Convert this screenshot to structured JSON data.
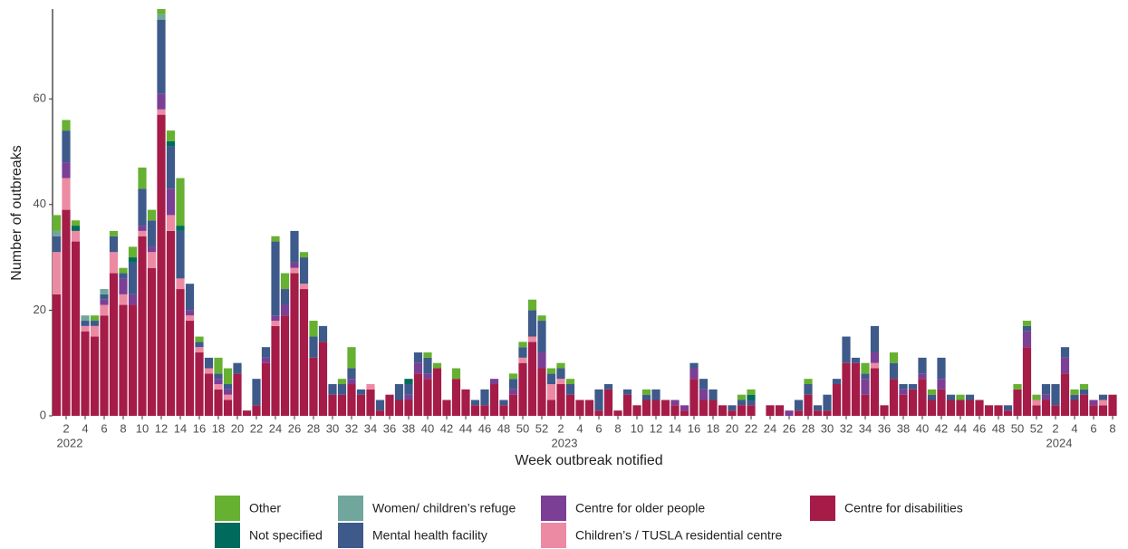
{
  "chart_data": {
    "type": "stacked_bar",
    "xlabel": "Week outbreak notified",
    "ylabel": "Number of outbreaks",
    "ylim": [
      0,
      77
    ],
    "yticks": [
      0,
      20,
      40,
      60
    ],
    "x_group_labels": [
      "2022",
      "2023",
      "2024"
    ],
    "categories": [
      null,
      "2",
      null,
      "4",
      null,
      "6",
      null,
      "8",
      null,
      "10",
      null,
      "12",
      null,
      "14",
      null,
      "16",
      null,
      "18",
      null,
      "20",
      null,
      "22",
      null,
      "24",
      null,
      "26",
      null,
      "28",
      null,
      "30",
      null,
      "32",
      null,
      "34",
      null,
      "36",
      null,
      "38",
      null,
      "40",
      null,
      "42",
      null,
      "44",
      null,
      "46",
      null,
      "48",
      null,
      "50",
      null,
      "52",
      null,
      "2",
      null,
      "4",
      null,
      "6",
      null,
      "8",
      null,
      "10",
      null,
      "12",
      null,
      "14",
      null,
      "16",
      null,
      "18",
      null,
      "20",
      null,
      "22",
      null,
      "24",
      null,
      "26",
      null,
      "28",
      null,
      "30",
      null,
      "32",
      null,
      "34",
      null,
      "36",
      null,
      "38",
      null,
      "40",
      null,
      "42",
      null,
      "44",
      null,
      "46",
      null,
      "48",
      null,
      "50",
      null,
      "52",
      null,
      "2",
      null,
      "4",
      null,
      "6",
      null,
      "8"
    ],
    "series": [
      {
        "name": "Centre for disabilities",
        "color": "#a51c48",
        "values": [
          23,
          39,
          33,
          16,
          15,
          19,
          27,
          21,
          21,
          34,
          28,
          57,
          35,
          24,
          18,
          12,
          8,
          5,
          3,
          8,
          1,
          2,
          10,
          17,
          19,
          27,
          24,
          11,
          14,
          4,
          4,
          6,
          4,
          5,
          1,
          4,
          3,
          3,
          8,
          7,
          9,
          3,
          7,
          5,
          2,
          2,
          6,
          2,
          4,
          10,
          14,
          9,
          3,
          6,
          4,
          3,
          3,
          1,
          5,
          1,
          4,
          2,
          3,
          3,
          3,
          2,
          1,
          7,
          3,
          3,
          2,
          1,
          2,
          2,
          0,
          2,
          2,
          0,
          1,
          4,
          1,
          1,
          6,
          10,
          10,
          4,
          9,
          2,
          7,
          4,
          5,
          7,
          3,
          5,
          3,
          3,
          3,
          3,
          2,
          2,
          1,
          5,
          13,
          2,
          3,
          2,
          8,
          3,
          4,
          2,
          2,
          4
        ]
      },
      {
        "name": "Children’s / TUSLA residential centre",
        "color": "#ec8aa3",
        "values": [
          8,
          6,
          2,
          1,
          2,
          2,
          4,
          2,
          0,
          1,
          3,
          1,
          3,
          2,
          1,
          1,
          1,
          1,
          1,
          0,
          0,
          0,
          0,
          1,
          0,
          1,
          1,
          0,
          0,
          0,
          0,
          0,
          0,
          1,
          0,
          0,
          0,
          0,
          0,
          0,
          0,
          0,
          0,
          0,
          0,
          0,
          0,
          0,
          0,
          1,
          1,
          0,
          3,
          1,
          0,
          0,
          0,
          0,
          0,
          0,
          0,
          0,
          0,
          0,
          0,
          0,
          0,
          0,
          0,
          0,
          0,
          0,
          0,
          0,
          0,
          0,
          0,
          0,
          0,
          0,
          0,
          0,
          0,
          0,
          0,
          0,
          1,
          0,
          0,
          0,
          0,
          0,
          0,
          0,
          0,
          0,
          0,
          0,
          0,
          0,
          0,
          0,
          0,
          1,
          0,
          0,
          0,
          0,
          0,
          0,
          1,
          0
        ]
      },
      {
        "name": "Centre for older people",
        "color": "#7b3f96",
        "values": [
          0,
          3,
          0,
          0,
          0,
          1,
          0,
          3,
          2,
          1,
          1,
          3,
          5,
          0,
          1,
          0,
          0,
          1,
          1,
          0,
          0,
          0,
          1,
          1,
          2,
          1,
          0,
          0,
          0,
          0,
          0,
          1,
          0,
          0,
          0,
          0,
          0,
          1,
          2,
          1,
          0,
          0,
          0,
          0,
          0,
          0,
          1,
          0,
          1,
          0,
          0,
          3,
          0,
          0,
          0,
          0,
          0,
          0,
          0,
          0,
          0,
          0,
          0,
          0,
          0,
          1,
          1,
          2,
          2,
          0,
          0,
          0,
          0,
          0,
          0,
          0,
          0,
          1,
          0,
          0,
          0,
          0,
          0,
          0,
          0,
          3,
          2,
          0,
          0,
          1,
          0,
          1,
          0,
          2,
          0,
          0,
          0,
          0,
          0,
          0,
          0,
          0,
          3,
          0,
          1,
          0,
          3,
          0,
          0,
          1,
          0,
          0
        ]
      },
      {
        "name": "Mental health facility",
        "color": "#3e5a8a",
        "values": [
          3,
          6,
          0,
          1,
          1,
          1,
          3,
          1,
          6,
          7,
          5,
          14,
          8,
          9,
          5,
          1,
          2,
          1,
          1,
          2,
          0,
          5,
          2,
          14,
          3,
          6,
          5,
          4,
          3,
          2,
          2,
          2,
          1,
          0,
          2,
          0,
          3,
          2,
          2,
          3,
          0,
          0,
          0,
          0,
          1,
          3,
          0,
          1,
          2,
          2,
          5,
          6,
          2,
          2,
          2,
          0,
          0,
          4,
          1,
          0,
          1,
          0,
          1,
          2,
          0,
          0,
          0,
          1,
          2,
          2,
          0,
          1,
          1,
          1,
          0,
          0,
          0,
          0,
          2,
          2,
          1,
          3,
          1,
          5,
          1,
          1,
          5,
          0,
          3,
          1,
          1,
          3,
          1,
          4,
          1,
          0,
          1,
          0,
          0,
          0,
          1,
          0,
          1,
          0,
          2,
          4,
          2,
          1,
          1,
          0,
          1,
          0
        ]
      },
      {
        "name": "Women/ children’s refuge",
        "color": "#70a69b",
        "values": [
          1,
          0,
          0,
          1,
          0,
          1,
          0,
          0,
          0,
          0,
          0,
          1,
          0,
          0,
          0,
          0,
          0,
          0,
          0,
          0,
          0,
          0,
          0,
          0,
          0,
          0,
          0,
          0,
          0,
          0,
          0,
          0,
          0,
          0,
          0,
          0,
          0,
          0,
          0,
          0,
          0,
          0,
          0,
          0,
          0,
          0,
          0,
          0,
          0,
          0,
          0,
          0,
          0,
          0,
          0,
          0,
          0,
          0,
          0,
          0,
          0,
          0,
          0,
          0,
          0,
          0,
          0,
          0,
          0,
          0,
          0,
          0,
          0,
          0,
          0,
          0,
          0,
          0,
          0,
          0,
          0,
          0,
          0,
          0,
          0,
          0,
          0,
          0,
          0,
          0,
          0,
          0,
          0,
          0,
          0,
          0,
          0,
          0,
          0,
          0,
          0,
          0,
          0,
          0,
          0,
          0,
          0,
          0,
          0,
          0,
          0,
          0
        ]
      },
      {
        "name": "Not specified",
        "color": "#006b5c",
        "values": [
          0,
          0,
          1,
          0,
          0,
          0,
          0,
          0,
          1,
          0,
          0,
          0,
          1,
          1,
          0,
          0,
          0,
          0,
          0,
          0,
          0,
          0,
          0,
          0,
          0,
          0,
          0,
          0,
          0,
          0,
          0,
          0,
          0,
          0,
          0,
          0,
          0,
          1,
          0,
          0,
          0,
          0,
          0,
          0,
          0,
          0,
          0,
          0,
          0,
          0,
          0,
          0,
          0,
          0,
          0,
          0,
          0,
          0,
          0,
          0,
          0,
          0,
          0,
          0,
          0,
          0,
          0,
          0,
          0,
          0,
          0,
          0,
          0,
          1,
          0,
          0,
          0,
          0,
          0,
          0,
          0,
          0,
          0,
          0,
          0,
          0,
          0,
          0,
          0,
          0,
          0,
          0,
          0,
          0,
          0,
          0,
          0,
          0,
          0,
          0,
          0,
          0,
          0,
          0,
          0,
          0,
          0,
          0,
          0,
          0,
          0,
          0
        ]
      },
      {
        "name": "Other",
        "color": "#66b032",
        "values": [
          3,
          2,
          1,
          0,
          1,
          0,
          1,
          1,
          2,
          4,
          2,
          1,
          2,
          9,
          0,
          1,
          0,
          3,
          3,
          0,
          0,
          0,
          0,
          1,
          3,
          0,
          1,
          3,
          0,
          0,
          1,
          4,
          0,
          0,
          0,
          0,
          0,
          0,
          0,
          1,
          1,
          0,
          2,
          0,
          0,
          0,
          0,
          0,
          1,
          1,
          2,
          1,
          1,
          1,
          1,
          0,
          0,
          0,
          0,
          0,
          0,
          0,
          1,
          0,
          0,
          0,
          0,
          0,
          0,
          0,
          0,
          0,
          1,
          1,
          0,
          0,
          0,
          0,
          0,
          1,
          0,
          0,
          0,
          0,
          0,
          2,
          0,
          0,
          2,
          0,
          0,
          0,
          1,
          0,
          0,
          1,
          0,
          0,
          0,
          0,
          0,
          1,
          1,
          1,
          0,
          0,
          0,
          1,
          1,
          0,
          0,
          0
        ]
      }
    ]
  }
}
